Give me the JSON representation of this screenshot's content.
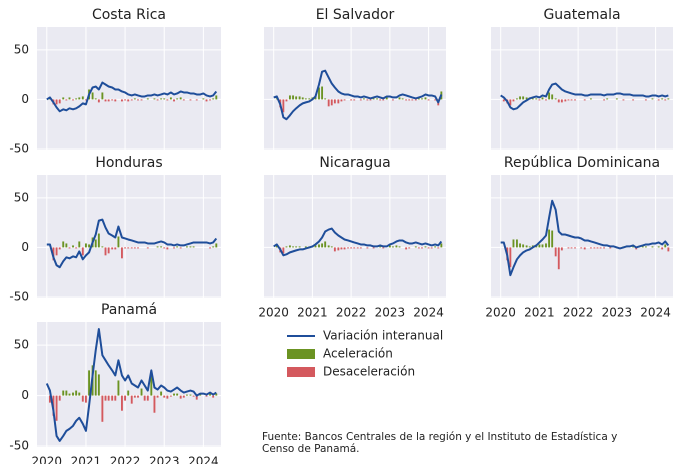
{
  "chart_data": {
    "type": "line-bar",
    "x": [
      2020,
      2020.08,
      2020.17,
      2020.25,
      2020.33,
      2020.42,
      2020.5,
      2020.58,
      2020.67,
      2020.75,
      2020.83,
      2020.92,
      2021,
      2021.08,
      2021.17,
      2021.25,
      2021.33,
      2021.42,
      2021.5,
      2021.58,
      2021.67,
      2021.75,
      2021.83,
      2021.92,
      2022,
      2022.08,
      2022.17,
      2022.25,
      2022.33,
      2022.42,
      2022.5,
      2022.58,
      2022.67,
      2022.75,
      2022.83,
      2022.92,
      2023,
      2023.08,
      2023.17,
      2023.25,
      2023.33,
      2023.42,
      2023.5,
      2023.58,
      2023.67,
      2023.75,
      2023.83,
      2023.92,
      2024,
      2024.08,
      2024.17,
      2024.25,
      2024.33
    ],
    "xlim": [
      2019.75,
      2024.45
    ],
    "xticks": [
      2020,
      2021,
      2022,
      2023,
      2024
    ],
    "ylim": [
      -51,
      73
    ],
    "yticks": [
      -50,
      0,
      50
    ],
    "grid": true,
    "legend": [
      {
        "name": "Variación interanual",
        "color": "#1f4e9a",
        "mark": "line"
      },
      {
        "name": "Aceleración",
        "color": "#6b9322",
        "mark": "bar",
        "sign": "positive"
      },
      {
        "name": "Desaceleración",
        "color": "#d4595e",
        "mark": "bar",
        "sign": "negative"
      }
    ],
    "source": [
      "Fuente: Bancos Centrales de la región y el Instituto de Estadística y",
      "Censo de Panamá."
    ],
    "panels": [
      {
        "title": "Costa Rica",
        "line": [
          0,
          2,
          -3,
          -8,
          -12,
          -10,
          -11,
          -9,
          -10,
          -9,
          -7,
          -4,
          -5,
          5,
          12,
          13,
          10,
          17,
          15,
          13,
          12,
          10,
          10,
          8,
          7,
          5,
          4,
          5,
          4,
          3,
          3,
          4,
          4,
          5,
          4,
          5,
          6,
          5,
          7,
          5,
          6,
          8,
          7,
          7,
          6,
          6,
          5,
          5,
          6,
          4,
          3,
          4,
          8
        ],
        "bars": [
          0,
          2,
          -5,
          -5,
          -4,
          2,
          -1,
          2,
          -1,
          1,
          2,
          3,
          -1,
          10,
          7,
          1,
          -3,
          7,
          -2,
          -2,
          -1,
          -2,
          0,
          -2,
          -1,
          -2,
          -1,
          1,
          -1,
          -1,
          0,
          1,
          0,
          1,
          -1,
          1,
          1,
          -1,
          2,
          -2,
          1,
          2,
          -1,
          0,
          -1,
          0,
          -1,
          0,
          1,
          -2,
          -1,
          1,
          4
        ]
      },
      {
        "title": "El Salvador",
        "line": [
          2,
          3,
          -5,
          -18,
          -20,
          -16,
          -12,
          -9,
          -6,
          -4,
          -3,
          -2,
          0,
          3,
          15,
          28,
          29,
          22,
          16,
          12,
          8,
          6,
          5,
          5,
          4,
          3,
          3,
          2,
          3,
          2,
          1,
          2,
          3,
          2,
          1,
          3,
          3,
          2,
          2,
          4,
          5,
          4,
          3,
          2,
          1,
          2,
          3,
          5,
          4,
          4,
          3,
          -3,
          5
        ],
        "bars": [
          0,
          1,
          -8,
          -13,
          -2,
          4,
          4,
          3,
          3,
          2,
          1,
          1,
          2,
          3,
          12,
          13,
          1,
          -7,
          -6,
          -4,
          -4,
          -2,
          -1,
          0,
          -1,
          -1,
          0,
          -1,
          1,
          -1,
          -1,
          1,
          1,
          -1,
          -1,
          2,
          0,
          -1,
          0,
          2,
          1,
          -1,
          -1,
          -1,
          -1,
          1,
          1,
          2,
          -1,
          0,
          -1,
          -6,
          8
        ]
      },
      {
        "title": "Guatemala",
        "line": [
          4,
          2,
          -2,
          -8,
          -10,
          -9,
          -6,
          -3,
          -1,
          1,
          2,
          3,
          2,
          4,
          3,
          10,
          15,
          16,
          13,
          10,
          8,
          7,
          6,
          5,
          5,
          5,
          4,
          4,
          5,
          5,
          5,
          5,
          4,
          5,
          5,
          5,
          6,
          6,
          5,
          5,
          5,
          4,
          4,
          4,
          4,
          3,
          3,
          4,
          4,
          3,
          4,
          3,
          4
        ],
        "bars": [
          0,
          -2,
          -4,
          -6,
          -2,
          1,
          3,
          3,
          2,
          2,
          1,
          1,
          -1,
          2,
          -1,
          7,
          5,
          1,
          -3,
          -3,
          -2,
          -1,
          -1,
          -1,
          0,
          0,
          -1,
          0,
          1,
          0,
          0,
          0,
          -1,
          1,
          0,
          0,
          1,
          0,
          -1,
          0,
          0,
          -1,
          0,
          0,
          0,
          -1,
          0,
          1,
          0,
          -1,
          1,
          -1,
          1
        ]
      },
      {
        "title": "Honduras",
        "line": [
          3,
          3,
          -10,
          -18,
          -20,
          -14,
          -10,
          -11,
          -9,
          -10,
          -4,
          -12,
          -8,
          -5,
          5,
          13,
          27,
          28,
          20,
          14,
          12,
          10,
          21,
          10,
          9,
          8,
          7,
          6,
          5,
          5,
          5,
          4,
          4,
          4,
          5,
          6,
          5,
          3,
          3,
          2,
          3,
          2,
          2,
          3,
          4,
          5,
          5,
          5,
          5,
          5,
          4,
          5,
          9
        ],
        "bars": [
          0,
          0,
          -13,
          -8,
          -2,
          6,
          4,
          -1,
          2,
          -1,
          6,
          -8,
          4,
          3,
          10,
          8,
          14,
          1,
          -8,
          -6,
          -2,
          -2,
          11,
          -11,
          -1,
          -1,
          -1,
          -1,
          -1,
          0,
          0,
          -1,
          0,
          0,
          1,
          1,
          -1,
          -2,
          0,
          -1,
          1,
          -1,
          0,
          1,
          1,
          1,
          0,
          0,
          0,
          0,
          -1,
          1,
          4
        ]
      },
      {
        "title": "Nicaragua",
        "line": [
          1,
          3,
          -2,
          -8,
          -7,
          -5,
          -4,
          -3,
          -2,
          -2,
          -1,
          0,
          1,
          3,
          6,
          10,
          16,
          18,
          19,
          15,
          12,
          10,
          8,
          7,
          6,
          5,
          4,
          3,
          3,
          2,
          2,
          1,
          1,
          2,
          1,
          1,
          3,
          4,
          6,
          7,
          7,
          5,
          4,
          4,
          5,
          4,
          3,
          4,
          3,
          2,
          3,
          2,
          6
        ],
        "bars": [
          0,
          2,
          -5,
          -6,
          1,
          2,
          1,
          1,
          1,
          0,
          1,
          1,
          1,
          2,
          3,
          4,
          6,
          2,
          1,
          -4,
          -3,
          -2,
          -2,
          -1,
          -1,
          -1,
          -1,
          -1,
          0,
          -1,
          0,
          -1,
          0,
          1,
          -1,
          0,
          2,
          1,
          2,
          1,
          0,
          -2,
          -1,
          0,
          1,
          -1,
          -1,
          1,
          -1,
          -1,
          1,
          -1,
          4
        ]
      },
      {
        "title": "República Dominicana",
        "line": [
          5,
          5,
          -8,
          -28,
          -20,
          -12,
          -8,
          -5,
          -3,
          -2,
          0,
          2,
          5,
          8,
          12,
          30,
          47,
          38,
          16,
          13,
          13,
          12,
          11,
          10,
          10,
          9,
          7,
          7,
          6,
          5,
          4,
          3,
          2,
          2,
          1,
          1,
          0,
          -1,
          0,
          1,
          1,
          2,
          0,
          1,
          2,
          3,
          3,
          4,
          4,
          5,
          3,
          6,
          2
        ],
        "bars": [
          0,
          0,
          -13,
          -20,
          8,
          8,
          4,
          3,
          2,
          1,
          2,
          2,
          3,
          3,
          4,
          18,
          17,
          -9,
          -22,
          -3,
          0,
          -1,
          -1,
          -1,
          0,
          -1,
          -2,
          0,
          -1,
          -1,
          -1,
          -1,
          -1,
          0,
          -1,
          0,
          -1,
          -1,
          1,
          1,
          0,
          1,
          -2,
          1,
          1,
          1,
          0,
          1,
          0,
          1,
          -2,
          3,
          -4
        ]
      },
      {
        "title": "Panamá",
        "line": [
          12,
          5,
          -15,
          -40,
          -45,
          -40,
          -35,
          -33,
          -30,
          -25,
          -22,
          -28,
          -35,
          -10,
          20,
          45,
          66,
          40,
          35,
          30,
          25,
          20,
          35,
          20,
          15,
          20,
          12,
          10,
          8,
          15,
          10,
          5,
          25,
          8,
          6,
          10,
          8,
          5,
          4,
          6,
          8,
          5,
          3,
          4,
          5,
          4,
          0,
          2,
          2,
          1,
          3,
          1,
          3
        ],
        "bars": [
          0,
          -7,
          -20,
          -25,
          -5,
          5,
          5,
          2,
          3,
          5,
          3,
          -6,
          -7,
          25,
          30,
          25,
          21,
          -26,
          -5,
          -5,
          -5,
          -5,
          15,
          -15,
          -5,
          5,
          -8,
          -2,
          -2,
          7,
          -5,
          -5,
          20,
          -17,
          -2,
          4,
          -2,
          -3,
          -1,
          2,
          2,
          -3,
          -2,
          1,
          1,
          -1,
          -4,
          2,
          0,
          -1,
          2,
          -2,
          2
        ]
      }
    ]
  }
}
